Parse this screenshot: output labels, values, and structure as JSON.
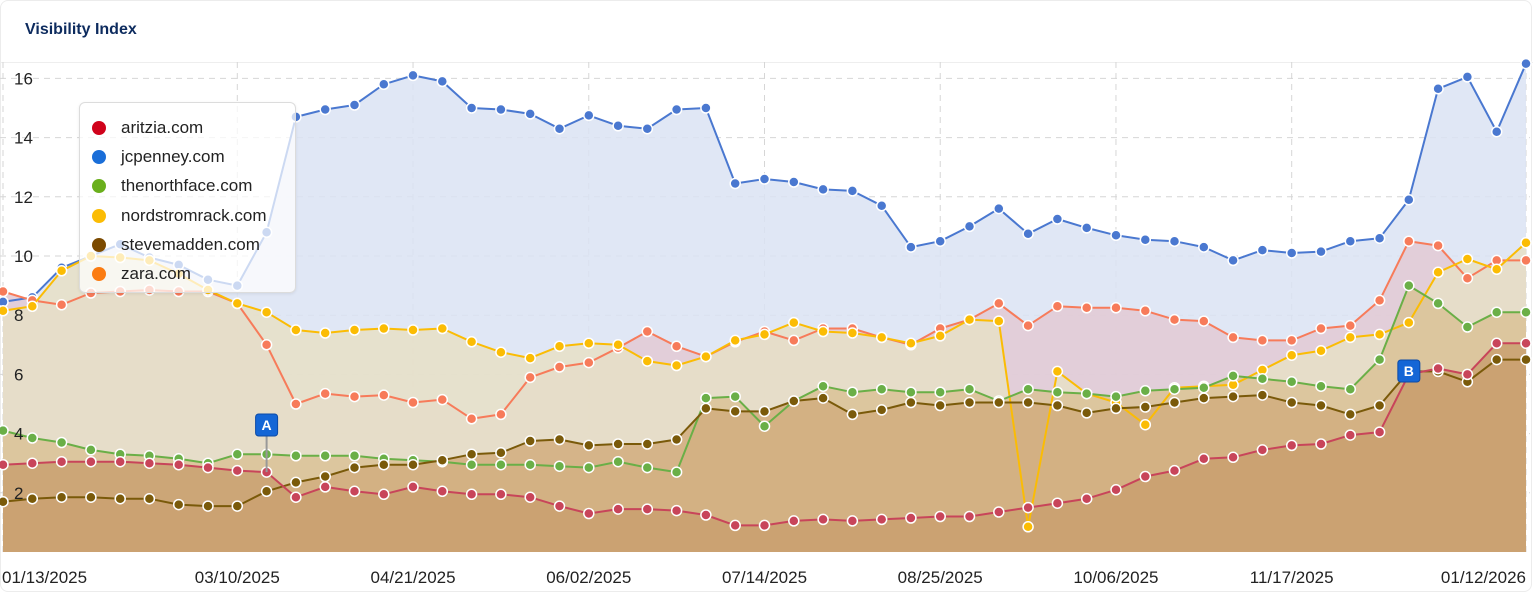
{
  "card": {
    "title": "Visibility Index"
  },
  "chart_data": {
    "type": "area",
    "title": "Visibility Index",
    "xlabel": "",
    "ylabel": "",
    "ylim": [
      0,
      16.5
    ],
    "yticks": [
      2,
      4,
      6,
      8,
      10,
      12,
      14,
      16
    ],
    "grid": true,
    "legend_position": "top-left (inside)",
    "x_tick_labels": [
      "01/13/2025",
      "03/10/2025",
      "04/21/2025",
      "06/02/2025",
      "07/14/2025",
      "08/25/2025",
      "10/06/2025",
      "11/17/2025",
      "01/12/2026"
    ],
    "x_tick_indices": [
      0,
      8,
      14,
      20,
      26,
      32,
      38,
      44,
      52
    ],
    "x_start": "01/13/2025",
    "x_end": "01/12/2026",
    "x_interval": "weekly",
    "n_points": 53,
    "annotations": [
      {
        "label": "A",
        "index": 9,
        "series": "aritzia.com"
      },
      {
        "label": "B",
        "index": 48,
        "series": "aritzia.com"
      }
    ],
    "series": [
      {
        "name": "jcpenney.com",
        "color": "#4a78d0",
        "fill": "#dbe3f3",
        "values": [
          8.45,
          8.6,
          9.6,
          10.0,
          10.4,
          9.95,
          9.7,
          9.2,
          9.0,
          10.8,
          14.7,
          14.95,
          15.1,
          15.8,
          16.1,
          15.9,
          15.0,
          14.95,
          14.8,
          14.3,
          14.75,
          14.4,
          14.3,
          14.95,
          15.0,
          12.45,
          12.6,
          12.5,
          12.25,
          12.2,
          11.7,
          10.3,
          10.5,
          11.0,
          11.6,
          10.75,
          11.25,
          10.95,
          10.7,
          10.55,
          10.5,
          10.3,
          9.85,
          10.2,
          10.1,
          10.15,
          10.5,
          10.6,
          11.9,
          15.65,
          16.05,
          14.2,
          16.5
        ]
      },
      {
        "name": "zara.com",
        "color": "#f77b5a",
        "fill": "#e2c9d3",
        "values": [
          8.8,
          8.5,
          8.35,
          8.75,
          8.8,
          8.85,
          8.8,
          8.8,
          8.4,
          7.0,
          5.0,
          5.35,
          5.25,
          5.3,
          5.05,
          5.15,
          4.5,
          4.65,
          5.9,
          6.25,
          6.4,
          6.9,
          7.45,
          6.95,
          6.6,
          7.1,
          7.45,
          7.15,
          7.55,
          7.55,
          7.25,
          7.0,
          7.55,
          7.85,
          8.4,
          7.65,
          8.3,
          8.25,
          8.25,
          8.15,
          7.85,
          7.8,
          7.25,
          7.15,
          7.15,
          7.55,
          7.65,
          8.5,
          10.5,
          10.35,
          9.25,
          9.85,
          9.85
        ]
      },
      {
        "name": "nordstromrack.com",
        "color": "#fbbc04",
        "fill": "#e6dfc5",
        "values": [
          8.15,
          8.3,
          9.5,
          10.0,
          9.95,
          9.85,
          9.4,
          8.85,
          8.4,
          8.1,
          7.5,
          7.4,
          7.5,
          7.55,
          7.5,
          7.55,
          7.1,
          6.75,
          6.55,
          6.95,
          7.05,
          7.0,
          6.45,
          6.3,
          6.6,
          7.15,
          7.35,
          7.75,
          7.45,
          7.4,
          7.25,
          7.05,
          7.3,
          7.85,
          7.8,
          0.85,
          6.1,
          5.35,
          5.05,
          4.3,
          5.55,
          5.6,
          5.65,
          6.15,
          6.65,
          6.8,
          7.25,
          7.35,
          7.75,
          9.45,
          9.9,
          9.55,
          10.45
        ]
      },
      {
        "name": "thenorthface.com",
        "color": "#6aaf47",
        "fill": "#d9c296",
        "values": [
          4.1,
          3.85,
          3.7,
          3.45,
          3.3,
          3.25,
          3.15,
          3.0,
          3.3,
          3.3,
          3.25,
          3.25,
          3.25,
          3.15,
          3.1,
          3.05,
          2.95,
          2.95,
          2.95,
          2.9,
          2.85,
          3.05,
          2.85,
          2.7,
          5.2,
          5.25,
          4.25,
          5.1,
          5.6,
          5.4,
          5.5,
          5.4,
          5.4,
          5.5,
          5.1,
          5.5,
          5.4,
          5.35,
          5.25,
          5.45,
          5.5,
          5.55,
          5.95,
          5.85,
          5.75,
          5.6,
          5.5,
          6.5,
          9.0,
          8.4,
          7.6,
          8.1,
          8.1
        ]
      },
      {
        "name": "stevemadden.com",
        "color": "#7a5a0a",
        "fill": "#d1ad7e",
        "values": [
          1.7,
          1.8,
          1.85,
          1.85,
          1.8,
          1.8,
          1.6,
          1.55,
          1.55,
          2.05,
          2.35,
          2.55,
          2.85,
          2.95,
          2.95,
          3.1,
          3.3,
          3.35,
          3.75,
          3.8,
          3.6,
          3.65,
          3.65,
          3.8,
          4.85,
          4.75,
          4.75,
          5.1,
          5.2,
          4.65,
          4.8,
          5.05,
          4.95,
          5.05,
          5.05,
          5.05,
          4.95,
          4.7,
          4.85,
          4.9,
          5.05,
          5.2,
          5.25,
          5.3,
          5.05,
          4.95,
          4.65,
          4.95,
          6.1,
          6.1,
          5.75,
          6.5,
          6.5
        ]
      },
      {
        "name": "aritzia.com",
        "color": "#c8455a",
        "fill": "#c9a070",
        "values": [
          2.95,
          3.0,
          3.05,
          3.05,
          3.05,
          3.0,
          2.95,
          2.85,
          2.75,
          2.7,
          1.85,
          2.2,
          2.05,
          1.95,
          2.2,
          2.05,
          1.95,
          1.95,
          1.85,
          1.55,
          1.3,
          1.45,
          1.45,
          1.4,
          1.25,
          0.9,
          0.9,
          1.05,
          1.1,
          1.05,
          1.1,
          1.15,
          1.2,
          1.2,
          1.35,
          1.5,
          1.65,
          1.8,
          2.1,
          2.55,
          2.75,
          3.15,
          3.2,
          3.45,
          3.6,
          3.65,
          3.95,
          4.05,
          6.0,
          6.2,
          6.0,
          7.05,
          7.05
        ]
      }
    ]
  },
  "legend": {
    "items": [
      {
        "label": "aritzia.com",
        "color": "#d0021b"
      },
      {
        "label": "jcpenney.com",
        "color": "#1a6ed8"
      },
      {
        "label": "thenorthface.com",
        "color": "#6aaf1c"
      },
      {
        "label": "nordstromrack.com",
        "color": "#fbbc04"
      },
      {
        "label": "stevemadden.com",
        "color": "#7b4a00"
      },
      {
        "label": "zara.com",
        "color": "#fb7c12"
      }
    ]
  },
  "markers": [
    {
      "label": "A"
    },
    {
      "label": "B"
    }
  ]
}
